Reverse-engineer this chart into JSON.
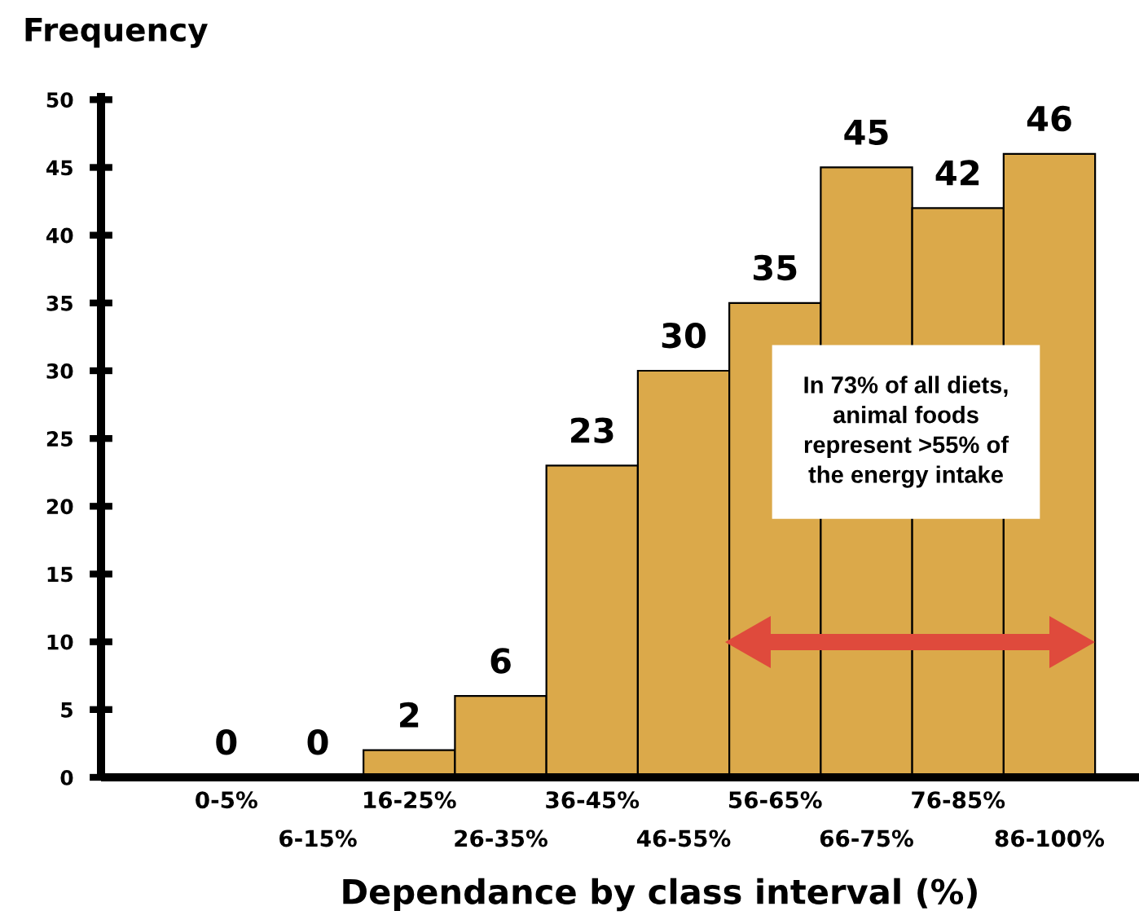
{
  "chart_data": {
    "type": "bar",
    "xlabel": "Dependance by class interval (%)",
    "ylabel": "Frequency",
    "categories": [
      "0-5%",
      "6-15%",
      "16-25%",
      "26-35%",
      "36-45%",
      "46-55%",
      "56-65%",
      "66-75%",
      "76-85%",
      "86-100%"
    ],
    "values": [
      0,
      0,
      2,
      6,
      23,
      30,
      35,
      45,
      42,
      46
    ],
    "color": "#dba94a",
    "ylim": [
      0,
      50.5
    ],
    "yticks": [
      0,
      5,
      10,
      15,
      20,
      25,
      30,
      35,
      40,
      45,
      50
    ],
    "data_labels": true,
    "annotations": [
      "In 73% of all diets,\nanimal foods\nrepresent >55% of\nthe energy intake"
    ]
  }
}
